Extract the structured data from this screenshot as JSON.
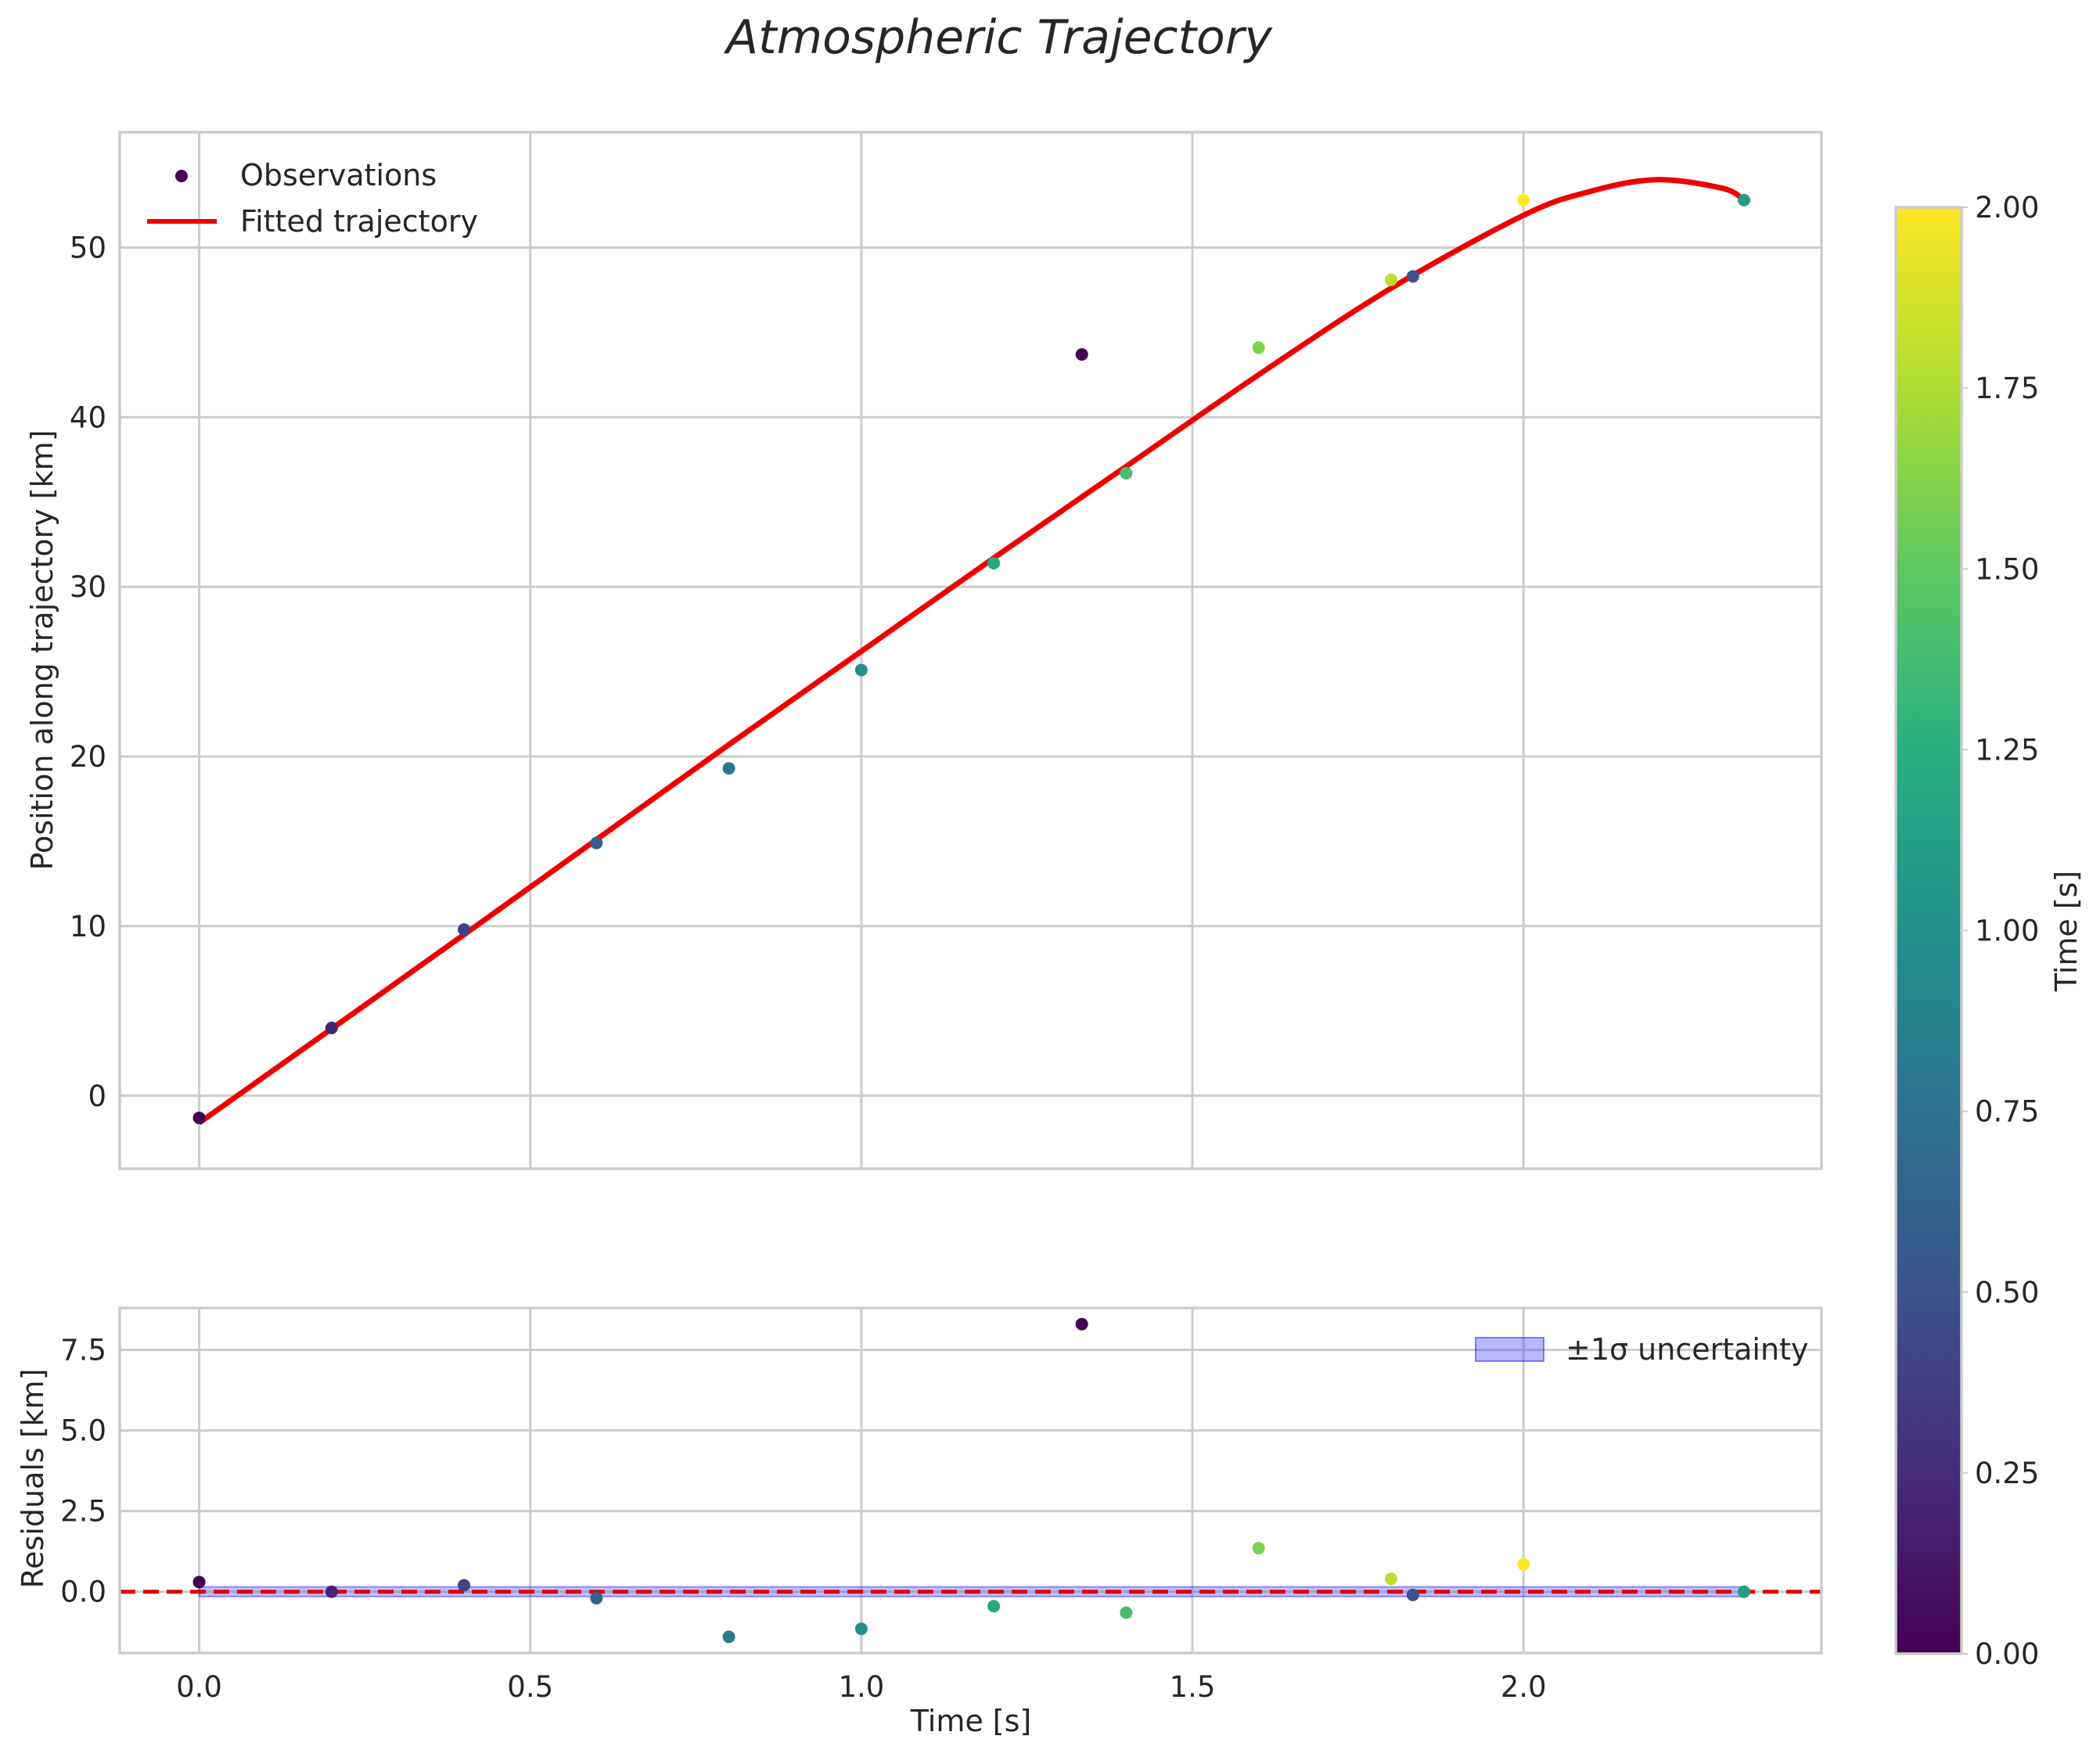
{
  "chart_data": [
    {
      "type": "scatter+line",
      "panel": "main",
      "title": "Atmospheric Trajectory",
      "xlabel": "",
      "ylabel": "Position along trajectory [km]",
      "xlim": [
        -0.12,
        2.45
      ],
      "ylim": [
        -4.3,
        56.8
      ],
      "xticks": [
        0.0,
        0.5,
        1.0,
        1.5,
        2.0
      ],
      "yticks": [
        0,
        10,
        20,
        30,
        40,
        50
      ],
      "ytick_labels": [
        "0",
        "10",
        "20",
        "30",
        "40",
        "50"
      ],
      "grid": true,
      "legend_position": "top-left",
      "legend": [
        "Observations",
        "Fitted trajectory"
      ],
      "observations": {
        "name": "Observations",
        "x": [
          0.0,
          0.2,
          0.4,
          0.6,
          0.8,
          1.0,
          1.2,
          1.333,
          1.4,
          1.6,
          1.8,
          1.833,
          2.0,
          2.333
        ],
        "y": [
          -1.3,
          4.0,
          9.8,
          14.9,
          19.3,
          25.1,
          31.4,
          43.7,
          36.7,
          44.1,
          48.1,
          48.3,
          52.8,
          52.8
        ],
        "time": [
          0.0,
          0.2,
          0.4,
          0.6,
          0.8,
          1.0,
          1.2,
          0.0,
          1.4,
          1.6,
          1.8,
          0.5,
          2.0,
          1.1
        ]
      },
      "fit": {
        "name": "Fitted trajectory",
        "color": "#ee0000",
        "x": [
          0.0,
          0.2,
          0.4,
          0.6,
          0.8,
          1.0,
          1.2,
          1.4,
          1.6,
          1.8,
          2.0,
          2.1,
          2.2,
          2.3,
          2.333
        ],
        "y": [
          -1.6,
          3.95,
          9.5,
          15.1,
          20.7,
          26.2,
          31.7,
          37.1,
          42.5,
          47.6,
          51.9,
          53.3,
          54.0,
          53.5,
          52.8
        ]
      }
    },
    {
      "type": "scatter",
      "panel": "residuals",
      "xlabel": "Time [s]",
      "ylabel": "Residuals [km]",
      "xlim": [
        -0.12,
        2.45
      ],
      "ylim": [
        -1.9,
        8.8
      ],
      "xticks": [
        0.0,
        0.5,
        1.0,
        1.5,
        2.0
      ],
      "xtick_labels": [
        "0.0",
        "0.5",
        "1.0",
        "1.5",
        "2.0"
      ],
      "yticks": [
        0.0,
        2.5,
        5.0,
        7.5
      ],
      "ytick_labels": [
        "0.0",
        "2.5",
        "5.0",
        "7.5"
      ],
      "grid": true,
      "legend_position": "top-right",
      "legend": [
        "±1σ uncertainty"
      ],
      "zero_line_color": "#dd0000",
      "band": {
        "name": "±1σ uncertainty",
        "x": [
          0.0,
          2.333
        ],
        "lower": -0.15,
        "upper": 0.15,
        "color": "#3333ff"
      },
      "residuals": {
        "x": [
          0.0,
          0.2,
          0.4,
          0.6,
          0.8,
          1.0,
          1.2,
          1.333,
          1.4,
          1.6,
          1.8,
          1.833,
          2.0,
          2.333
        ],
        "y": [
          0.3,
          0.0,
          0.2,
          -0.2,
          -1.4,
          -1.15,
          -0.45,
          8.3,
          -0.65,
          1.35,
          0.4,
          -0.1,
          0.85,
          0.0
        ],
        "time": [
          0.0,
          0.2,
          0.4,
          0.6,
          0.8,
          1.0,
          1.2,
          0.0,
          1.4,
          1.6,
          1.8,
          0.5,
          2.0,
          1.1
        ]
      }
    },
    {
      "type": "colorbar",
      "label": "Time [s]",
      "colormap": "viridis",
      "range": [
        0.0,
        2.0
      ],
      "ticks": [
        0.0,
        0.25,
        0.5,
        0.75,
        1.0,
        1.25,
        1.5,
        1.75,
        2.0
      ],
      "tick_labels": [
        "0.00",
        "0.25",
        "0.50",
        "0.75",
        "1.00",
        "1.25",
        "1.50",
        "1.75",
        "2.00"
      ]
    }
  ]
}
